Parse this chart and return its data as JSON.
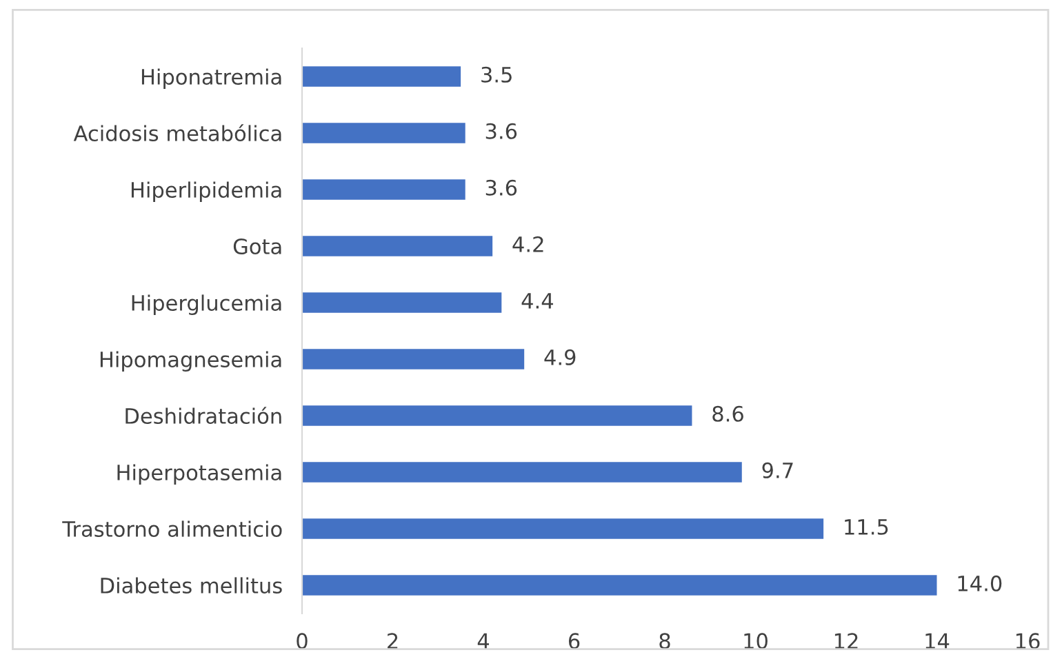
{
  "chart_data": {
    "type": "bar",
    "orientation": "horizontal",
    "categories": [
      "Hiponatremia",
      "Acidosis metabólica",
      "Hiperlipidemia",
      "Gota",
      "Hiperglucemia",
      "Hipomagnesemia",
      "Deshidratación",
      "Hiperpotasemia",
      "Trastorno alimenticio",
      "Diabetes mellitus"
    ],
    "values": [
      3.5,
      3.6,
      3.6,
      4.2,
      4.4,
      4.9,
      8.6,
      9.7,
      11.5,
      14.0
    ],
    "value_labels": [
      "3.5",
      "3.6",
      "3.6",
      "4.2",
      "4.4",
      "4.9",
      "8.6",
      "9.7",
      "11.5",
      "14.0"
    ],
    "color": "#4472c4",
    "xlim": [
      0,
      16
    ],
    "xticks": [
      0,
      2,
      4,
      6,
      8,
      10,
      12,
      14,
      16
    ],
    "grid": false,
    "legend": false
  }
}
